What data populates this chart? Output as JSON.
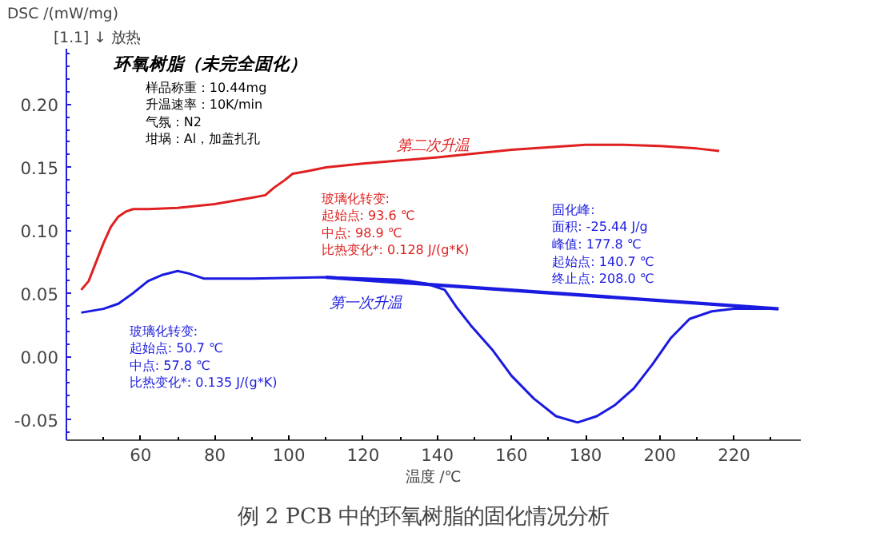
{
  "chart_data": {
    "type": "line",
    "ylabel": "DSC /(mW/mg)",
    "xlabel": "温度 /℃",
    "xlim": [
      40,
      238
    ],
    "xticks": [
      60,
      80,
      100,
      120,
      140,
      160,
      180,
      200,
      220
    ],
    "ylim": [
      -0.066,
      0.244
    ],
    "yticks": [
      {
        "value": -0.05,
        "label": "-0.05"
      },
      {
        "value": 0.0,
        "label": "0.00"
      },
      {
        "value": 0.05,
        "label": "0.05"
      },
      {
        "value": 0.1,
        "label": "0.10"
      },
      {
        "value": 0.15,
        "label": "0.15"
      },
      {
        "value": 0.2,
        "label": "0.20"
      }
    ],
    "grid": false,
    "marker": "none",
    "line_style": "solid",
    "series": [
      {
        "name": "第二次升温",
        "color": "#e02020",
        "x": [
          44,
          46,
          48,
          50,
          52,
          54,
          56,
          58,
          62,
          70,
          80,
          90,
          93.6,
          96,
          98.9,
          101,
          105,
          110,
          120,
          140,
          160,
          180,
          190,
          200,
          210,
          216
        ],
        "values": [
          0.053,
          0.06,
          0.075,
          0.09,
          0.103,
          0.111,
          0.115,
          0.117,
          0.117,
          0.118,
          0.121,
          0.126,
          0.128,
          0.134,
          0.14,
          0.145,
          0.147,
          0.15,
          0.153,
          0.158,
          0.164,
          0.168,
          0.168,
          0.167,
          0.165,
          0.163
        ]
      },
      {
        "name": "第一次升温",
        "color": "#1a1ae0",
        "x": [
          44,
          50,
          54,
          57.8,
          62,
          66,
          70,
          73,
          77,
          90,
          110,
          130,
          137,
          142,
          145,
          149,
          155,
          160,
          166,
          172,
          177.8,
          183,
          188,
          193,
          198,
          203,
          208,
          214,
          220,
          232
        ],
        "values": [
          0.035,
          0.038,
          0.042,
          0.05,
          0.06,
          0.065,
          0.068,
          0.066,
          0.062,
          0.062,
          0.063,
          0.061,
          0.058,
          0.053,
          0.04,
          0.025,
          0.005,
          -0.015,
          -0.033,
          -0.047,
          -0.052,
          -0.047,
          -0.038,
          -0.025,
          -0.006,
          0.015,
          0.03,
          0.036,
          0.038,
          0.038
        ]
      },
      {
        "color": "#1a1ae0",
        "x": [
          110,
          232
        ],
        "values": [
          0.063,
          0.038
        ]
      }
    ],
    "annotations": [
      "环氧树脂（未完全固化）",
      "样品称重：10.44mg\n升温速率：10K/min\n气氛：N2\n坩埚：Al，加盖扎孔",
      "玻璃化转变:\n起始点:     93.6 ℃\n中点:        98.9 ℃\n比热变化*:   0.128 J/(g*K)",
      "玻璃化转变:\n起始点:     50.7 ℃\n中点:        57.8 ℃\n比热变化*:   0.135 J/(g*K)",
      "固化峰:\n   面积:      -25.44 J/g\n   峰值:      177.8 ℃\n   起始点:   140.7 ℃\n   终止点:   208.0 ℃",
      "[1.1] ↓ 放热",
      "例 2    PCB 中的环氧树脂的固化情况分析"
    ]
  }
}
